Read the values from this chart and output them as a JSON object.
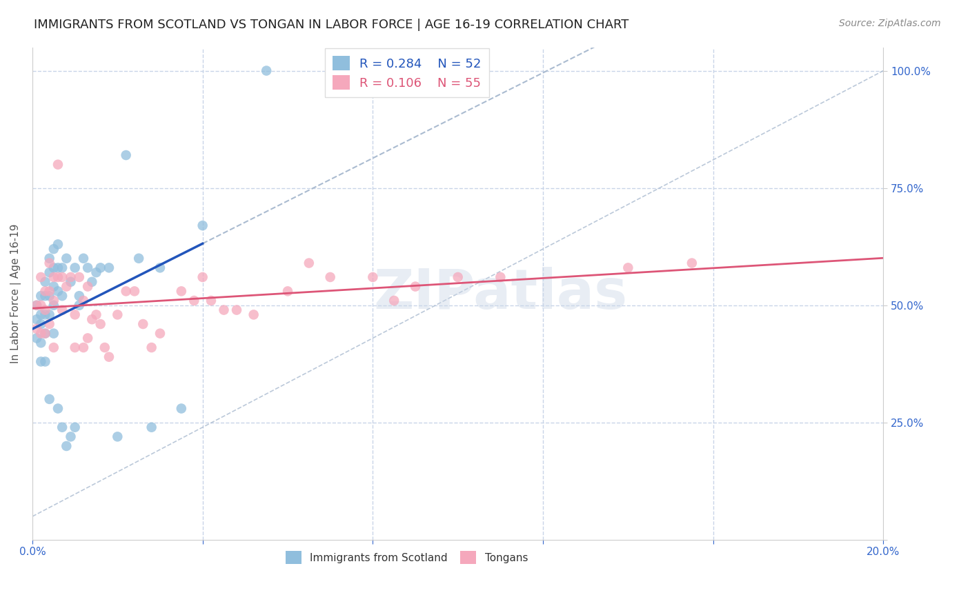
{
  "title": "IMMIGRANTS FROM SCOTLAND VS TONGAN IN LABOR FORCE | AGE 16-19 CORRELATION CHART",
  "source": "Source: ZipAtlas.com",
  "ylabel": "In Labor Force | Age 16-19",
  "xlim": [
    0.0,
    0.2
  ],
  "ylim": [
    0.0,
    1.05
  ],
  "scotland_R": 0.284,
  "scotland_N": 52,
  "tongan_R": 0.106,
  "tongan_N": 55,
  "scotland_color": "#90bedd",
  "tongan_color": "#f5a8bc",
  "scotland_line_color": "#2255bb",
  "tongan_line_color": "#dd5577",
  "diagonal_line_color": "#aabbd0",
  "background_color": "#ffffff",
  "grid_color": "#c8d4e8",
  "right_tick_color": "#3366cc",
  "scotland_x": [
    0.001,
    0.001,
    0.001,
    0.002,
    0.002,
    0.002,
    0.002,
    0.002,
    0.003,
    0.003,
    0.003,
    0.003,
    0.003,
    0.004,
    0.004,
    0.004,
    0.004,
    0.004,
    0.005,
    0.005,
    0.005,
    0.005,
    0.005,
    0.006,
    0.006,
    0.006,
    0.006,
    0.007,
    0.007,
    0.007,
    0.008,
    0.008,
    0.009,
    0.009,
    0.01,
    0.01,
    0.011,
    0.011,
    0.012,
    0.013,
    0.014,
    0.015,
    0.016,
    0.018,
    0.02,
    0.022,
    0.025,
    0.028,
    0.03,
    0.035,
    0.04,
    0.055
  ],
  "scotland_y": [
    0.5,
    0.47,
    0.43,
    0.52,
    0.48,
    0.46,
    0.42,
    0.38,
    0.55,
    0.52,
    0.48,
    0.44,
    0.38,
    0.6,
    0.57,
    0.52,
    0.48,
    0.3,
    0.62,
    0.58,
    0.54,
    0.5,
    0.44,
    0.63,
    0.58,
    0.53,
    0.28,
    0.58,
    0.52,
    0.24,
    0.6,
    0.2,
    0.55,
    0.22,
    0.58,
    0.24,
    0.52,
    0.5,
    0.6,
    0.58,
    0.55,
    0.57,
    0.58,
    0.58,
    0.22,
    0.82,
    0.6,
    0.24,
    0.58,
    0.28,
    0.67,
    1.0
  ],
  "tongan_x": [
    0.001,
    0.001,
    0.002,
    0.002,
    0.002,
    0.003,
    0.003,
    0.003,
    0.004,
    0.004,
    0.004,
    0.005,
    0.005,
    0.005,
    0.006,
    0.006,
    0.007,
    0.007,
    0.008,
    0.009,
    0.01,
    0.01,
    0.011,
    0.012,
    0.012,
    0.013,
    0.013,
    0.014,
    0.015,
    0.016,
    0.017,
    0.018,
    0.02,
    0.022,
    0.024,
    0.026,
    0.028,
    0.03,
    0.035,
    0.038,
    0.04,
    0.042,
    0.045,
    0.048,
    0.052,
    0.06,
    0.065,
    0.07,
    0.08,
    0.085,
    0.09,
    0.1,
    0.11,
    0.14,
    0.155
  ],
  "tongan_y": [
    0.5,
    0.45,
    0.56,
    0.5,
    0.44,
    0.53,
    0.49,
    0.44,
    0.59,
    0.53,
    0.46,
    0.56,
    0.51,
    0.41,
    0.8,
    0.56,
    0.56,
    0.49,
    0.54,
    0.56,
    0.48,
    0.41,
    0.56,
    0.51,
    0.41,
    0.54,
    0.43,
    0.47,
    0.48,
    0.46,
    0.41,
    0.39,
    0.48,
    0.53,
    0.53,
    0.46,
    0.41,
    0.44,
    0.53,
    0.51,
    0.56,
    0.51,
    0.49,
    0.49,
    0.48,
    0.53,
    0.59,
    0.56,
    0.56,
    0.51,
    0.54,
    0.56,
    0.56,
    0.58,
    0.59
  ],
  "watermark_text": "ZIPatlas",
  "title_fontsize": 13,
  "axis_label_fontsize": 11,
  "tick_fontsize": 11,
  "legend_fontsize": 13,
  "source_fontsize": 10
}
